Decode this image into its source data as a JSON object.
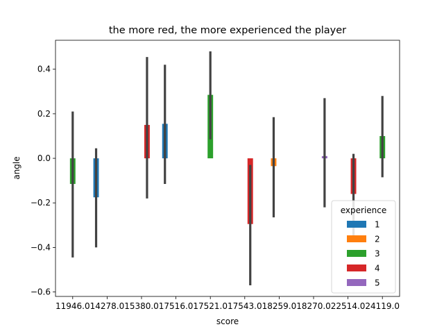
{
  "chart_data": {
    "type": "bar",
    "title": "the more red, the more experienced the player",
    "xlabel": "score",
    "ylabel": "angle",
    "ylim": [
      -0.62,
      0.53
    ],
    "yticks": [
      -0.6,
      -0.4,
      -0.2,
      0.0,
      0.2,
      0.4
    ],
    "ytick_labels": [
      "−0.6",
      "−0.4",
      "−0.2",
      "0.0",
      "0.2",
      "0.4"
    ],
    "categories": [
      "11946.0",
      "14278.0",
      "15380.0",
      "17516.0",
      "17521.0",
      "17543.0",
      "18259.0",
      "18270.0",
      "22514.0",
      "24119.0"
    ],
    "legend": {
      "title": "experience",
      "placement": "lower right"
    },
    "series": [
      {
        "name": "1",
        "color": "#1f77b4",
        "values": [
          null,
          -0.175,
          null,
          0.155,
          null,
          null,
          null,
          null,
          null,
          null
        ],
        "ci_low": [
          null,
          -0.4,
          null,
          -0.115,
          null,
          null,
          null,
          null,
          null,
          null
        ],
        "ci_high": [
          null,
          0.045,
          null,
          0.42,
          null,
          null,
          null,
          null,
          null,
          null
        ]
      },
      {
        "name": "2",
        "color": "#ff7f0e",
        "values": [
          null,
          null,
          null,
          null,
          null,
          null,
          -0.035,
          null,
          null,
          null
        ],
        "ci_low": [
          null,
          null,
          null,
          null,
          null,
          null,
          -0.265,
          null,
          null,
          null
        ],
        "ci_high": [
          null,
          null,
          null,
          null,
          null,
          null,
          0.185,
          null,
          null,
          null
        ]
      },
      {
        "name": "3",
        "color": "#2ca02c",
        "values": [
          -0.115,
          null,
          null,
          null,
          0.285,
          null,
          null,
          null,
          null,
          0.1
        ],
        "ci_low": [
          -0.445,
          null,
          null,
          null,
          0.085,
          null,
          null,
          null,
          null,
          -0.085
        ],
        "ci_high": [
          0.21,
          null,
          null,
          null,
          0.48,
          null,
          null,
          null,
          null,
          0.28
        ]
      },
      {
        "name": "4",
        "color": "#d62728",
        "values": [
          null,
          null,
          0.15,
          null,
          null,
          -0.295,
          null,
          null,
          -0.16,
          null
        ],
        "ci_low": [
          null,
          null,
          -0.18,
          null,
          null,
          -0.57,
          null,
          null,
          -0.35,
          null
        ],
        "ci_high": [
          null,
          null,
          0.455,
          null,
          null,
          -0.03,
          null,
          null,
          0.02,
          null
        ]
      },
      {
        "name": "5",
        "color": "#9467bd",
        "values": [
          null,
          null,
          null,
          null,
          null,
          null,
          null,
          0.01,
          null,
          null
        ],
        "ci_low": [
          null,
          null,
          null,
          null,
          null,
          null,
          null,
          -0.22,
          null,
          null
        ],
        "ci_high": [
          null,
          null,
          null,
          null,
          null,
          null,
          null,
          0.27,
          null,
          null
        ]
      }
    ]
  }
}
